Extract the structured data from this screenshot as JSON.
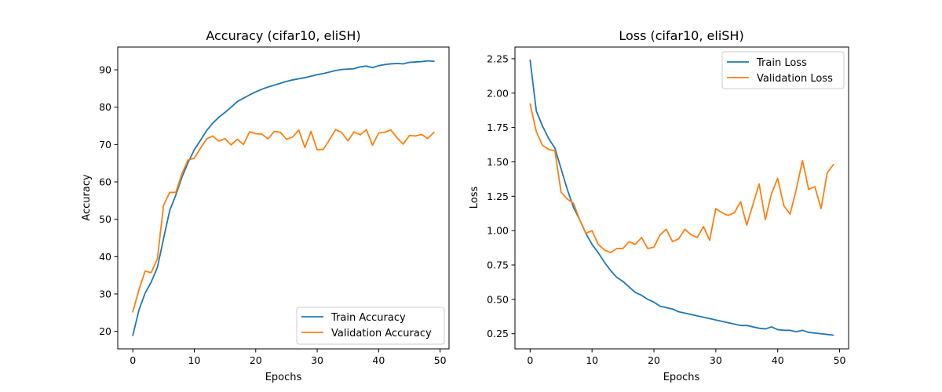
{
  "chart_data": [
    {
      "type": "line",
      "title": "Accuracy (cifar10, eliSH)",
      "xlabel": "Epochs",
      "ylabel": "Accuracy",
      "xlim": [
        -2.45,
        51.45
      ],
      "ylim": [
        15.3,
        96.1
      ],
      "xticks": [
        0,
        10,
        20,
        30,
        40,
        50
      ],
      "yticks": [
        20,
        30,
        40,
        50,
        60,
        70,
        80,
        90
      ],
      "legend": "lower-right",
      "x": [
        0,
        1,
        2,
        3,
        4,
        5,
        6,
        7,
        8,
        9,
        10,
        11,
        12,
        13,
        14,
        15,
        16,
        17,
        18,
        19,
        20,
        21,
        22,
        23,
        24,
        25,
        26,
        27,
        28,
        29,
        30,
        31,
        32,
        33,
        34,
        35,
        36,
        37,
        38,
        39,
        40,
        41,
        42,
        43,
        44,
        45,
        46,
        47,
        48,
        49
      ],
      "series": [
        {
          "name": "Train Accuracy",
          "color": "#1f77b4",
          "values": [
            18.9,
            25.7,
            30.2,
            33.2,
            37.1,
            44.8,
            52.3,
            56.5,
            61.3,
            65.2,
            68.6,
            71.1,
            73.7,
            75.7,
            77.3,
            78.6,
            80.0,
            81.5,
            82.4,
            83.3,
            84.1,
            84.8,
            85.4,
            85.9,
            86.4,
            86.9,
            87.3,
            87.6,
            87.9,
            88.3,
            88.7,
            89.0,
            89.4,
            89.8,
            90.1,
            90.2,
            90.3,
            90.8,
            91.0,
            90.6,
            91.1,
            91.4,
            91.6,
            91.7,
            91.6,
            92.0,
            92.1,
            92.2,
            92.4,
            92.3
          ]
        },
        {
          "name": "Validation Accuracy",
          "color": "#ff7f0e",
          "values": [
            25.2,
            31.1,
            36.1,
            35.7,
            39.4,
            53.7,
            57.2,
            57.2,
            62.2,
            65.9,
            66.3,
            69.0,
            71.5,
            72.3,
            70.9,
            71.6,
            69.9,
            71.4,
            70.0,
            73.4,
            72.9,
            72.8,
            71.5,
            73.5,
            73.3,
            71.4,
            72.0,
            73.9,
            69.2,
            73.5,
            68.6,
            68.7,
            71.3,
            74.0,
            73.2,
            71.0,
            73.4,
            72.6,
            74.0,
            69.8,
            73.1,
            73.3,
            73.9,
            71.8,
            70.1,
            72.4,
            72.3,
            72.7,
            71.6,
            73.3
          ]
        }
      ]
    },
    {
      "type": "line",
      "title": "Loss (cifar10, eliSH)",
      "xlabel": "Epochs",
      "ylabel": "Loss",
      "xlim": [
        -2.45,
        51.45
      ],
      "ylim": [
        0.14,
        2.335
      ],
      "xticks": [
        0,
        10,
        20,
        30,
        40,
        50
      ],
      "yticks": [
        0.25,
        0.5,
        0.75,
        1.0,
        1.25,
        1.5,
        1.75,
        2.0,
        2.25
      ],
      "ytick_labels": [
        "0.25",
        "0.50",
        "0.75",
        "1.00",
        "1.25",
        "1.50",
        "1.75",
        "2.00",
        "2.25"
      ],
      "legend": "upper-right",
      "x": [
        0,
        1,
        2,
        3,
        4,
        5,
        6,
        7,
        8,
        9,
        10,
        11,
        12,
        13,
        14,
        15,
        16,
        17,
        18,
        19,
        20,
        21,
        22,
        23,
        24,
        25,
        26,
        27,
        28,
        29,
        30,
        31,
        32,
        33,
        34,
        35,
        36,
        37,
        38,
        39,
        40,
        41,
        42,
        43,
        44,
        45,
        46,
        47,
        48,
        49
      ],
      "series": [
        {
          "name": "Train Loss",
          "color": "#1f77b4",
          "values": [
            2.24,
            1.87,
            1.76,
            1.67,
            1.6,
            1.45,
            1.3,
            1.17,
            1.08,
            0.98,
            0.9,
            0.84,
            0.77,
            0.71,
            0.66,
            0.63,
            0.59,
            0.55,
            0.53,
            0.5,
            0.48,
            0.45,
            0.44,
            0.43,
            0.41,
            0.4,
            0.39,
            0.38,
            0.37,
            0.36,
            0.35,
            0.34,
            0.33,
            0.32,
            0.31,
            0.31,
            0.3,
            0.29,
            0.285,
            0.3,
            0.28,
            0.275,
            0.275,
            0.265,
            0.275,
            0.26,
            0.255,
            0.25,
            0.245,
            0.24
          ]
        },
        {
          "name": "Validation Loss",
          "color": "#ff7f0e",
          "values": [
            1.92,
            1.72,
            1.62,
            1.59,
            1.58,
            1.28,
            1.23,
            1.2,
            1.08,
            0.98,
            1.0,
            0.9,
            0.86,
            0.84,
            0.87,
            0.87,
            0.92,
            0.9,
            0.95,
            0.87,
            0.88,
            0.97,
            1.01,
            0.92,
            0.94,
            1.01,
            0.97,
            0.95,
            1.03,
            0.93,
            1.16,
            1.13,
            1.11,
            1.13,
            1.21,
            1.04,
            1.19,
            1.34,
            1.08,
            1.27,
            1.38,
            1.18,
            1.12,
            1.3,
            1.51,
            1.3,
            1.32,
            1.16,
            1.42,
            1.48
          ]
        }
      ]
    }
  ]
}
